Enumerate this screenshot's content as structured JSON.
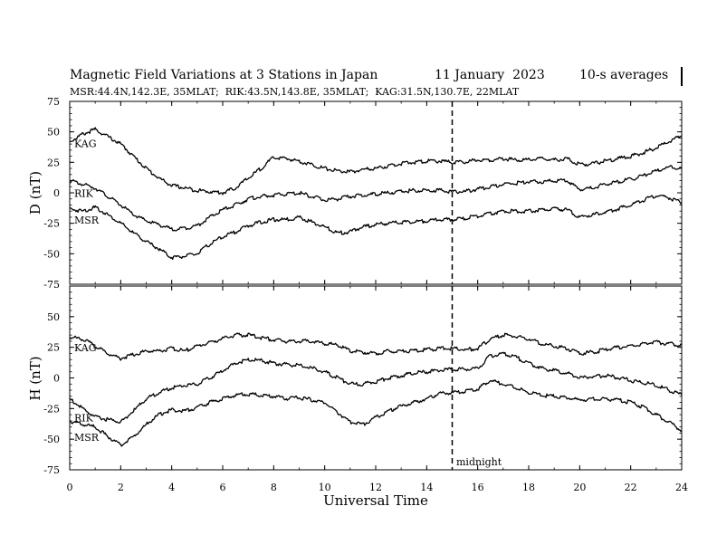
{
  "chart_data": {
    "type": "line",
    "title": "Magnetic Field Variations at 3 Stations in Japan",
    "date": "11 January  2023",
    "averaging": "10-s averages",
    "subtitle": "MSR:44.4N,142.3E, 35MLAT;  RIK:43.5N,143.8E, 35MLAT;  KAG:31.5N,130.7E, 22MLAT",
    "xlabel": "Universal Time",
    "xlim": [
      0,
      24
    ],
    "xticks": [
      0,
      2,
      4,
      6,
      8,
      10,
      12,
      14,
      16,
      18,
      20,
      22,
      24
    ],
    "marker": {
      "x": 15,
      "label": "midnight"
    },
    "panels": [
      {
        "ylabel": "D (nT)",
        "ylim": [
          -75,
          75
        ],
        "yticks": [
          75,
          50,
          25,
          0,
          -25,
          -50,
          -75
        ],
        "series": [
          {
            "name": "KAG",
            "x": [
              0,
              0.5,
              1,
              1.5,
              2,
              2.5,
              3,
              3.5,
              4,
              4.5,
              5,
              5.5,
              6,
              6.5,
              7,
              7.5,
              8,
              8.5,
              9,
              9.5,
              10,
              10.5,
              11,
              11.5,
              12,
              12.5,
              13,
              13.5,
              14,
              14.5,
              15,
              15.5,
              16,
              16.5,
              17,
              17.5,
              18,
              18.5,
              19,
              19.5,
              20,
              20.5,
              21,
              21.5,
              22,
              22.5,
              23,
              23.5,
              24
            ],
            "y": [
              42,
              48,
              52,
              46,
              40,
              30,
              20,
              12,
              6,
              4,
              2,
              1,
              0,
              4,
              12,
              20,
              29,
              28,
              26,
              23,
              20,
              18,
              17,
              19,
              20,
              22,
              24,
              25,
              26,
              26,
              25,
              25,
              27,
              27,
              28,
              27,
              27,
              28,
              27,
              28,
              23,
              24,
              26,
              28,
              30,
              33,
              37,
              42,
              47
            ]
          },
          {
            "name": "RIK",
            "x": [
              0,
              0.5,
              1,
              1.5,
              2,
              2.5,
              3,
              3.5,
              4,
              4.5,
              5,
              5.5,
              6,
              6.5,
              7,
              7.5,
              8,
              8.5,
              9,
              9.5,
              10,
              10.5,
              11,
              11.5,
              12,
              12.5,
              13,
              13.5,
              14,
              14.5,
              15,
              15.5,
              16,
              16.5,
              17,
              17.5,
              18,
              18.5,
              19,
              19.5,
              20,
              20.5,
              21,
              21.5,
              22,
              22.5,
              23,
              23.5,
              24
            ],
            "y": [
              10,
              7,
              4,
              -3,
              -10,
              -18,
              -23,
              -26,
              -30,
              -29,
              -27,
              -20,
              -14,
              -10,
              -5,
              -3,
              -2,
              -1,
              0,
              -3,
              -6,
              -5,
              -3,
              -2,
              -1,
              0,
              1,
              2,
              2,
              2,
              1,
              1,
              3,
              5,
              7,
              8,
              9,
              9,
              10,
              10,
              3,
              4,
              7,
              9,
              11,
              14,
              18,
              21,
              20
            ]
          },
          {
            "name": "MSR",
            "x": [
              0,
              0.5,
              1,
              1.5,
              2,
              2.5,
              3,
              3.5,
              4,
              4.5,
              5,
              5.5,
              6,
              6.5,
              7,
              7.5,
              8,
              8.5,
              9,
              9.5,
              10,
              10.5,
              11,
              11.5,
              12,
              12.5,
              13,
              13.5,
              14,
              14.5,
              15,
              15.5,
              16,
              16.5,
              17,
              17.5,
              18,
              18.5,
              19,
              19.5,
              20,
              20.5,
              21,
              21.5,
              22,
              22.5,
              23,
              23.5,
              24
            ],
            "y": [
              -13,
              -15,
              -12,
              -18,
              -25,
              -33,
              -40,
              -46,
              -53,
              -52,
              -50,
              -42,
              -36,
              -32,
              -27,
              -24,
              -22,
              -22,
              -20,
              -24,
              -28,
              -33,
              -32,
              -28,
              -26,
              -25,
              -24,
              -24,
              -23,
              -22,
              -22,
              -21,
              -19,
              -17,
              -15,
              -15,
              -15,
              -14,
              -13,
              -14,
              -20,
              -18,
              -16,
              -13,
              -10,
              -6,
              -2,
              -4,
              -8
            ]
          }
        ]
      },
      {
        "ylabel": "H (nT)",
        "ylim": [
          -75,
          75
        ],
        "yticks": [
          75,
          50,
          25,
          0,
          -25,
          -50,
          -75
        ],
        "series": [
          {
            "name": "KAG",
            "x": [
              0,
              0.5,
              1,
              1.5,
              2,
              2.5,
              3,
              3.5,
              4,
              4.5,
              5,
              5.5,
              6,
              6.5,
              7,
              7.5,
              8,
              8.5,
              9,
              9.5,
              10,
              10.5,
              11,
              11.5,
              12,
              12.5,
              13,
              13.5,
              14,
              14.5,
              15,
              15.5,
              16,
              16.5,
              17,
              17.5,
              18,
              18.5,
              19,
              19.5,
              20,
              20.5,
              21,
              21.5,
              22,
              22.5,
              23,
              23.5,
              24
            ],
            "y": [
              33,
              32,
              26,
              20,
              16,
              19,
              22,
              22,
              24,
              22,
              26,
              29,
              32,
              35,
              35,
              33,
              31,
              30,
              30,
              30,
              28,
              27,
              22,
              21,
              20,
              22,
              22,
              22,
              23,
              24,
              24,
              23,
              24,
              32,
              35,
              34,
              32,
              28,
              26,
              24,
              20,
              21,
              23,
              25,
              26,
              28,
              29,
              28,
              27
            ]
          },
          {
            "name": "RIK",
            "x": [
              0,
              0.5,
              1,
              1.5,
              2,
              2.5,
              3,
              3.5,
              4,
              4.5,
              5,
              5.5,
              6,
              6.5,
              7,
              7.5,
              8,
              8.5,
              9,
              9.5,
              10,
              10.5,
              11,
              11.5,
              12,
              12.5,
              13,
              13.5,
              14,
              14.5,
              15,
              15.5,
              16,
              16.5,
              17,
              17.5,
              18,
              18.5,
              19,
              19.5,
              20,
              20.5,
              21,
              21.5,
              22,
              22.5,
              23,
              23.5,
              24
            ],
            "y": [
              -17,
              -25,
              -32,
              -34,
              -36,
              -27,
              -17,
              -12,
              -8,
              -6,
              -5,
              0,
              6,
              12,
              15,
              14,
              12,
              11,
              10,
              8,
              5,
              0,
              -5,
              -5,
              -3,
              0,
              2,
              4,
              5,
              6,
              7,
              7,
              8,
              18,
              20,
              17,
              12,
              8,
              6,
              4,
              0,
              1,
              2,
              0,
              -2,
              -4,
              -6,
              -10,
              -14
            ]
          },
          {
            "name": "MSR",
            "x": [
              0,
              0.5,
              1,
              1.5,
              2,
              2.5,
              3,
              3.5,
              4,
              4.5,
              5,
              5.5,
              6,
              6.5,
              7,
              7.5,
              8,
              8.5,
              9,
              9.5,
              10,
              10.5,
              11,
              11.5,
              12,
              12.5,
              13,
              13.5,
              14,
              14.5,
              15,
              15.5,
              16,
              16.5,
              17,
              17.5,
              18,
              18.5,
              19,
              19.5,
              20,
              20.5,
              21,
              21.5,
              22,
              22.5,
              23,
              23.5,
              24
            ],
            "y": [
              -35,
              -38,
              -40,
              -48,
              -55,
              -48,
              -38,
              -30,
              -26,
              -27,
              -24,
              -20,
              -17,
              -14,
              -13,
              -14,
              -15,
              -17,
              -16,
              -18,
              -20,
              -28,
              -36,
              -38,
              -32,
              -27,
              -23,
              -20,
              -17,
              -13,
              -12,
              -11,
              -9,
              -2,
              -5,
              -8,
              -12,
              -14,
              -15,
              -16,
              -18,
              -17,
              -17,
              -18,
              -20,
              -24,
              -30,
              -36,
              -43
            ]
          }
        ]
      }
    ]
  }
}
